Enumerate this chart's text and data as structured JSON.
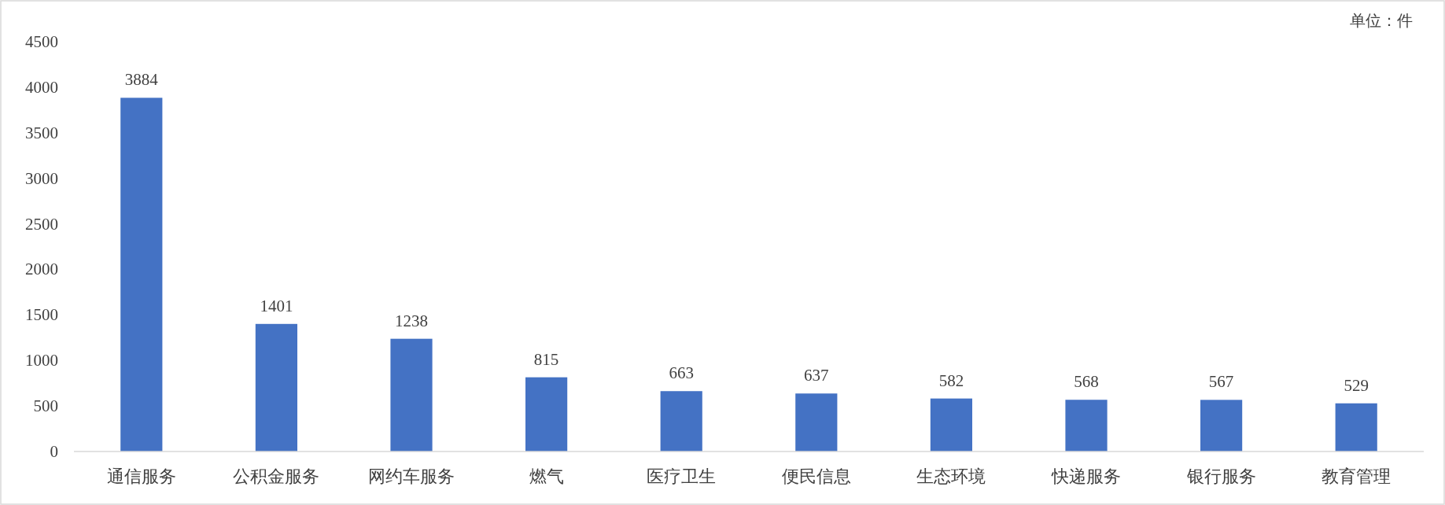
{
  "chart_data": {
    "type": "bar",
    "categories": [
      "通信服务",
      "公积金服务",
      "网约车服务",
      "燃气",
      "医疗卫生",
      "便民信息",
      "生态环境",
      "快递服务",
      "银行服务",
      "教育管理"
    ],
    "values": [
      3884,
      1401,
      1238,
      815,
      663,
      637,
      582,
      568,
      567,
      529
    ],
    "color": "#4472c4",
    "ylim": [
      0,
      4500
    ],
    "yticks": [
      0,
      500,
      1000,
      1500,
      2000,
      2500,
      3000,
      3500,
      4000,
      4500
    ],
    "data_labels": true,
    "annotations": [
      "单位：件"
    ]
  }
}
